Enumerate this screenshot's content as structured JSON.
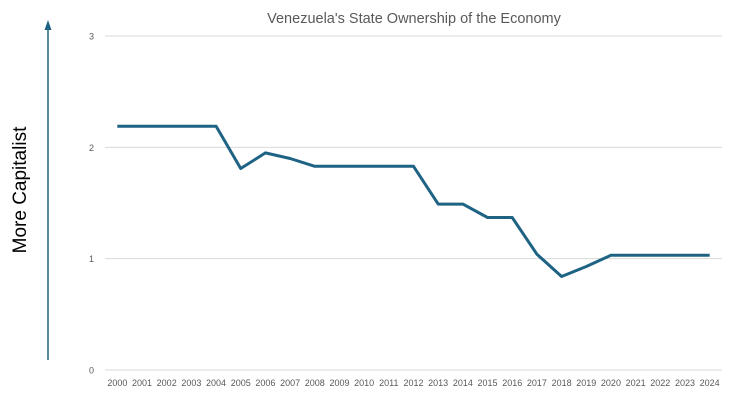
{
  "chart_data": {
    "type": "line",
    "title": "Venezuela's State Ownership of the Economy",
    "ylabel": "More Capitalist",
    "xlabel": "",
    "categories": [
      "2000",
      "2001",
      "2002",
      "2003",
      "2004",
      "2005",
      "2006",
      "2007",
      "2008",
      "2009",
      "2010",
      "2011",
      "2012",
      "2013",
      "2014",
      "2015",
      "2016",
      "2017",
      "2018",
      "2019",
      "2020",
      "2021",
      "2022",
      "2023",
      "2024"
    ],
    "values": [
      2.19,
      2.19,
      2.19,
      2.19,
      2.19,
      1.81,
      1.95,
      1.9,
      1.83,
      1.83,
      1.83,
      1.83,
      1.83,
      1.49,
      1.49,
      1.37,
      1.37,
      1.04,
      0.84,
      0.93,
      1.03,
      1.03,
      1.03,
      1.03,
      1.03
    ],
    "ylim": [
      0,
      3
    ],
    "yticks": [
      "0",
      "1",
      "2",
      "3"
    ],
    "grid": true,
    "legend": "none",
    "colors": {
      "line": "#1f6384",
      "grid": "#d9d9d9",
      "text": "#595959",
      "arrow": "#1f6384"
    }
  }
}
